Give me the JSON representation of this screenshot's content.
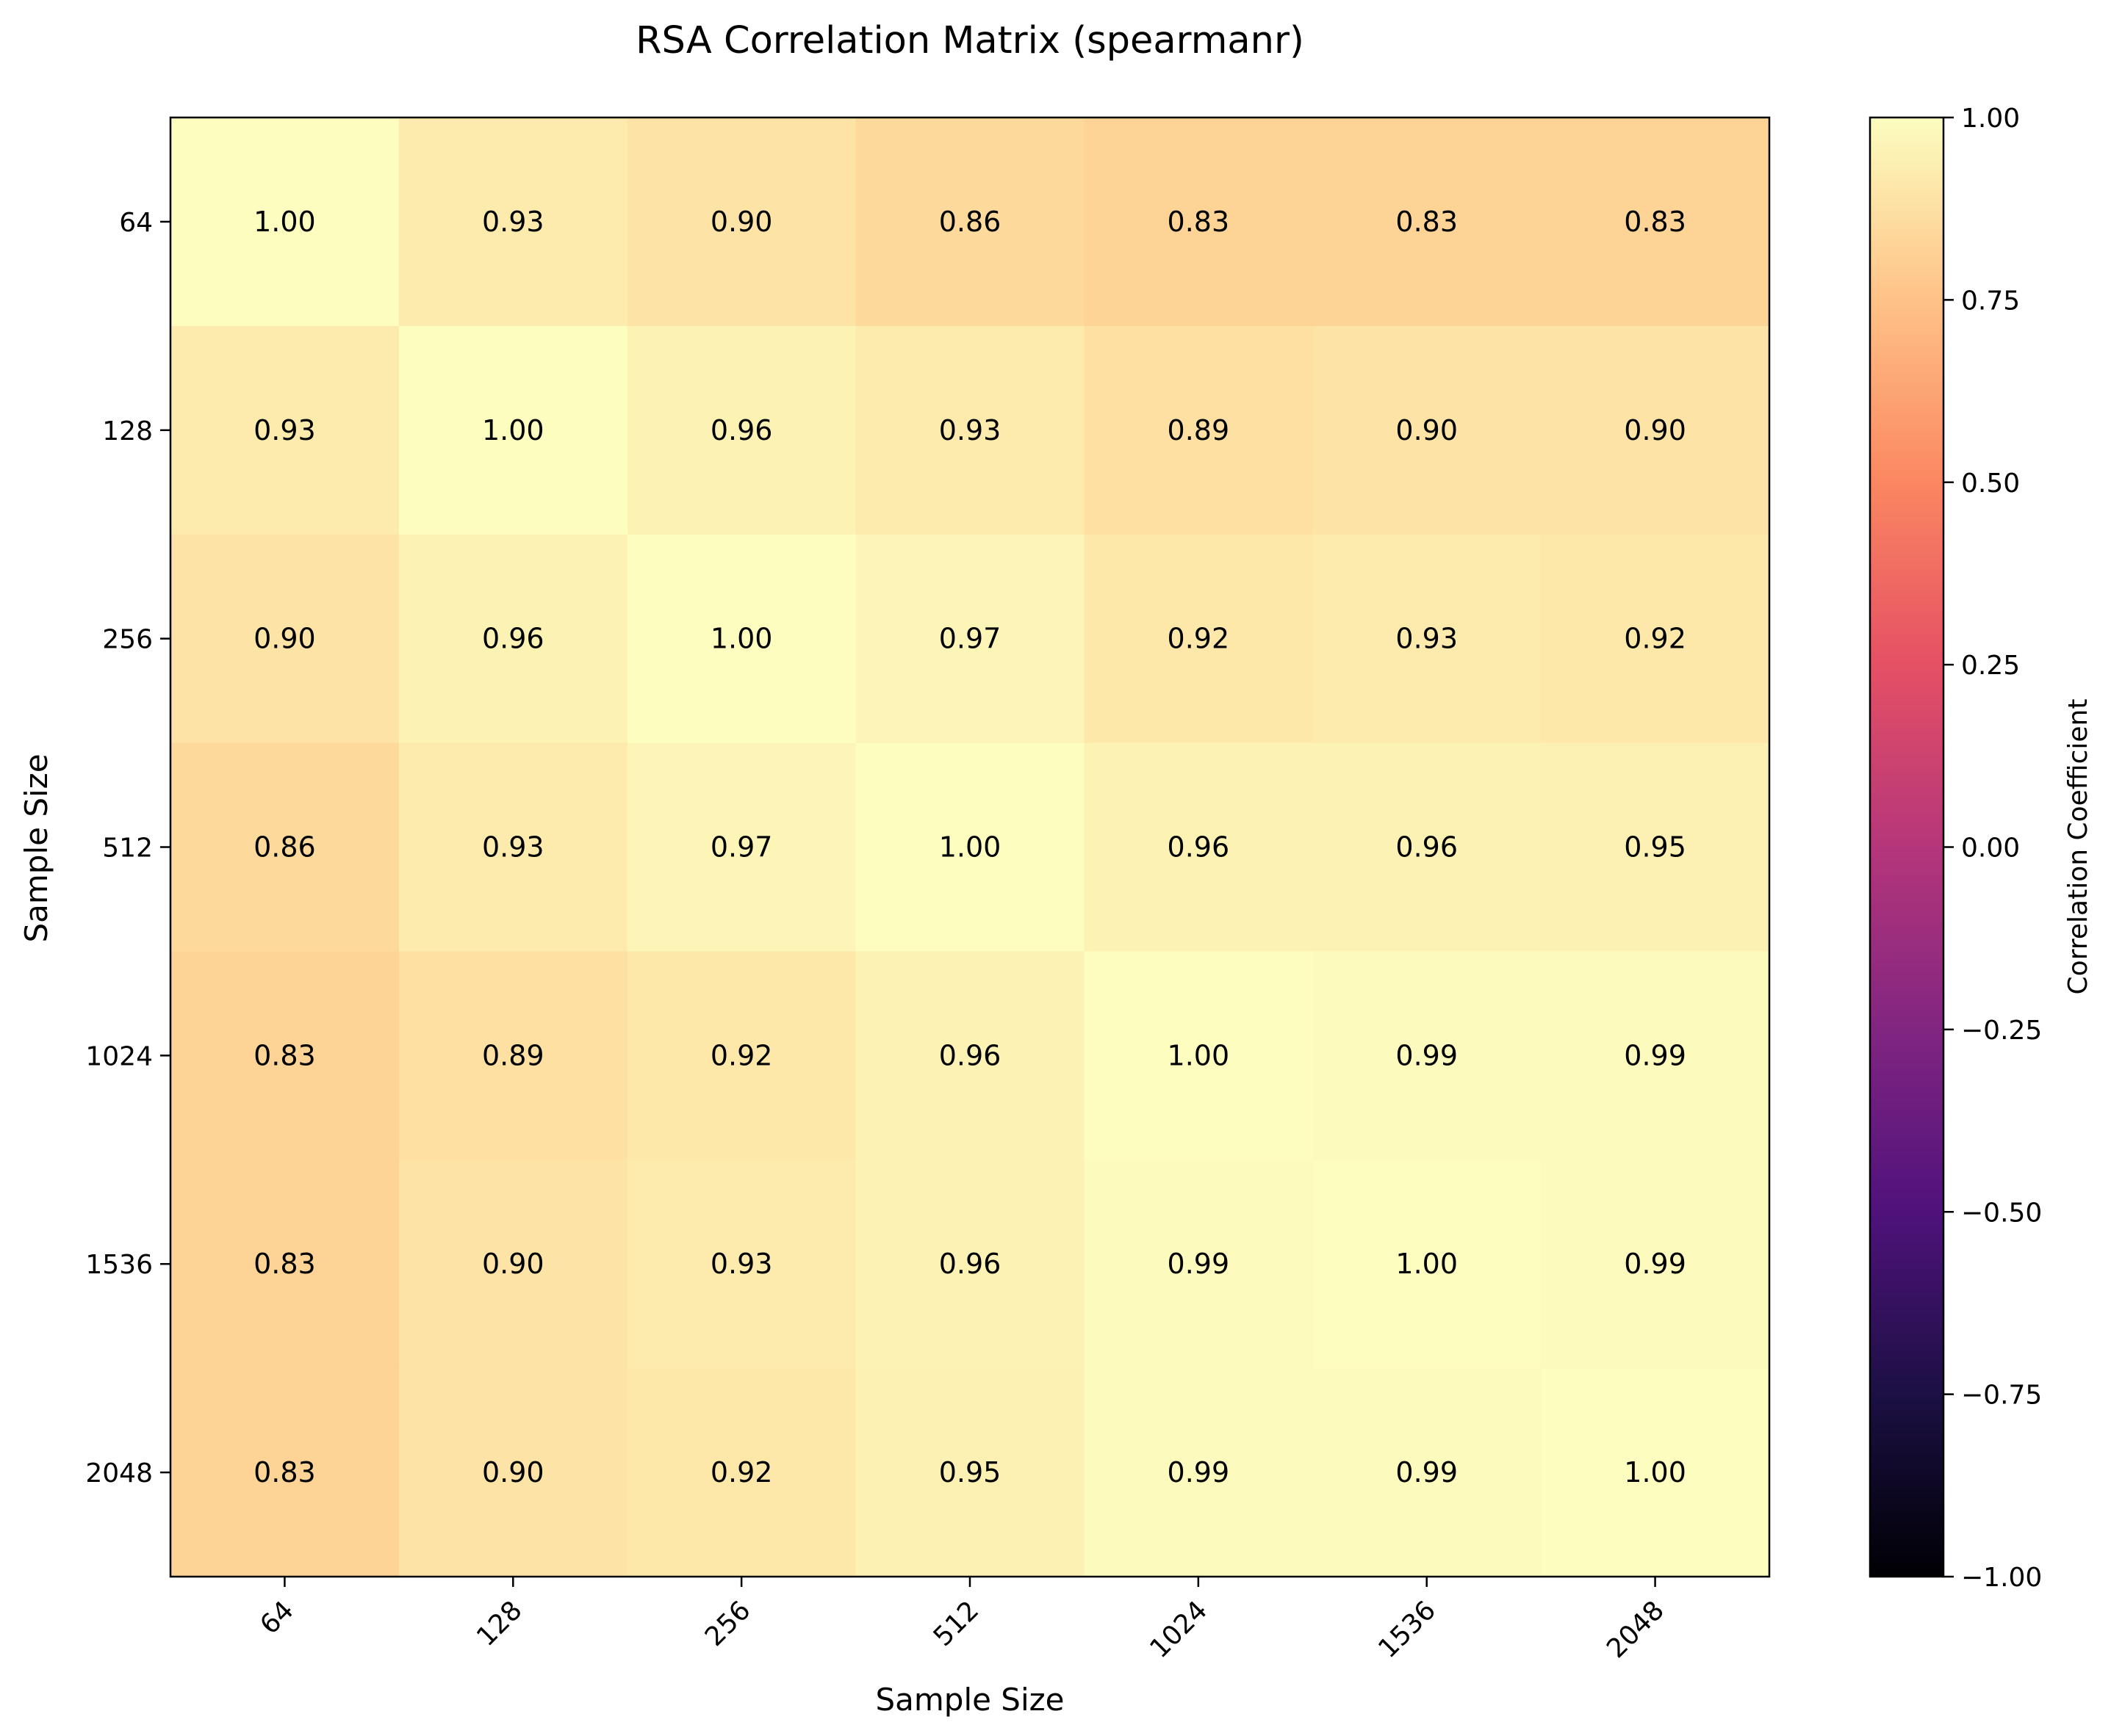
{
  "chart_data": {
    "type": "heatmap",
    "title": "RSA Correlation Matrix (spearmanr)",
    "xlabel": "Sample Size",
    "ylabel": "Sample Size",
    "x_categories": [
      "64",
      "128",
      "256",
      "512",
      "1024",
      "1536",
      "2048"
    ],
    "y_categories": [
      "64",
      "128",
      "256",
      "512",
      "1024",
      "1536",
      "2048"
    ],
    "values": [
      [
        1.0,
        0.93,
        0.9,
        0.86,
        0.83,
        0.83,
        0.83
      ],
      [
        0.93,
        1.0,
        0.96,
        0.93,
        0.89,
        0.9,
        0.9
      ],
      [
        0.9,
        0.96,
        1.0,
        0.97,
        0.92,
        0.93,
        0.92
      ],
      [
        0.86,
        0.93,
        0.97,
        1.0,
        0.96,
        0.96,
        0.95
      ],
      [
        0.83,
        0.89,
        0.92,
        0.96,
        1.0,
        0.99,
        0.99
      ],
      [
        0.83,
        0.9,
        0.93,
        0.96,
        0.99,
        1.0,
        0.99
      ],
      [
        0.83,
        0.9,
        0.92,
        0.95,
        0.99,
        0.99,
        1.0
      ]
    ],
    "value_labels": [
      [
        "1.00",
        "0.93",
        "0.90",
        "0.86",
        "0.83",
        "0.83",
        "0.83"
      ],
      [
        "0.93",
        "1.00",
        "0.96",
        "0.93",
        "0.89",
        "0.90",
        "0.90"
      ],
      [
        "0.90",
        "0.96",
        "1.00",
        "0.97",
        "0.92",
        "0.93",
        "0.92"
      ],
      [
        "0.86",
        "0.93",
        "0.97",
        "1.00",
        "0.96",
        "0.96",
        "0.95"
      ],
      [
        "0.83",
        "0.89",
        "0.92",
        "0.96",
        "1.00",
        "0.99",
        "0.99"
      ],
      [
        "0.83",
        "0.90",
        "0.93",
        "0.96",
        "0.99",
        "1.00",
        "0.99"
      ],
      [
        "0.83",
        "0.90",
        "0.92",
        "0.95",
        "0.99",
        "0.99",
        "1.00"
      ]
    ],
    "colormap": "magma",
    "colorbar": {
      "label": "Correlation Coefficient",
      "range": [
        -1.0,
        1.0
      ],
      "ticks": [
        1.0,
        0.75,
        0.5,
        0.25,
        0.0,
        -0.25,
        -0.5,
        -0.75,
        -1.0
      ],
      "tick_labels": [
        "1.00",
        "0.75",
        "0.50",
        "0.25",
        "0.00",
        "−0.25",
        "−0.50",
        "−0.75",
        "−1.00"
      ]
    },
    "grid": false
  }
}
